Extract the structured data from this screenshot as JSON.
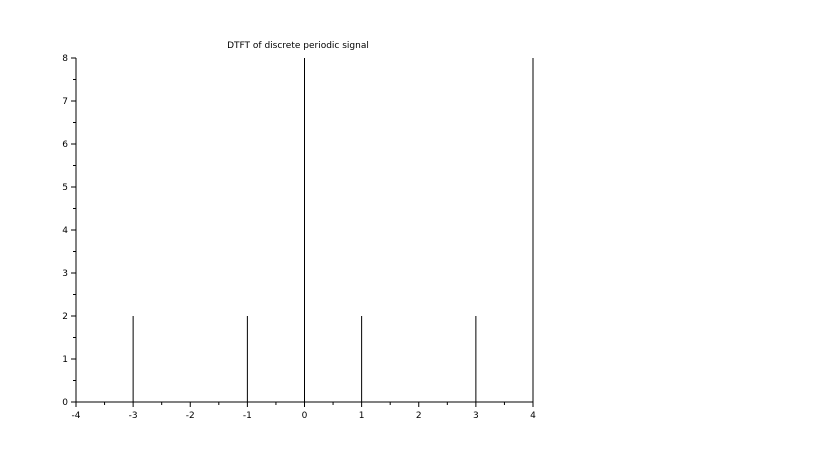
{
  "chart_data": {
    "type": "stem",
    "title": "DTFT of discrete periodic signal",
    "xlabel": "",
    "ylabel": "",
    "x": [
      -3,
      -1,
      0,
      1,
      3,
      4
    ],
    "values": [
      2,
      2,
      8,
      2,
      2,
      8
    ],
    "xlim": [
      -4,
      4
    ],
    "ylim": [
      0,
      8
    ],
    "xticks": [
      -4,
      -3,
      -2,
      -1,
      0,
      1,
      2,
      3,
      4
    ],
    "yticks": [
      0,
      1,
      2,
      3,
      4,
      5,
      6,
      7,
      8
    ],
    "grid": false,
    "colors": {
      "stem": "#000000",
      "axis": "#000000"
    }
  }
}
